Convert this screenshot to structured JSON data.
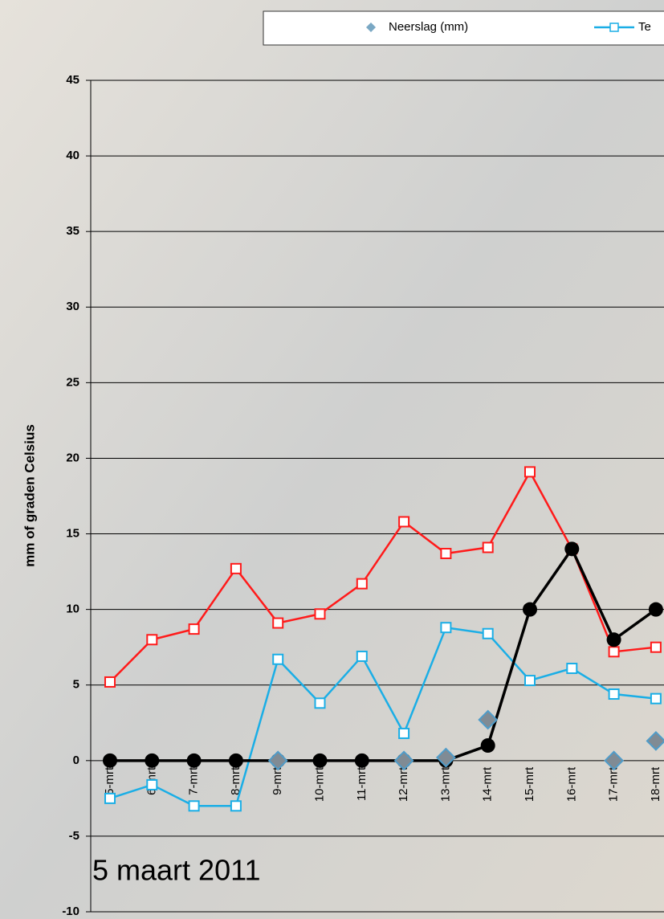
{
  "chart_data": {
    "type": "line",
    "y_label": "mm of graden Celsius",
    "annotation": "5 maart 2011",
    "categories": [
      "5-mrt",
      "6-mrt",
      "7-mrt",
      "8-mrt",
      "9-mrt",
      "10-mrt",
      "11-mrt",
      "12-mrt",
      "13-mrt",
      "14-mrt",
      "15-mrt",
      "16-mrt",
      "17-mrt",
      "18-mrt"
    ],
    "series": [
      {
        "color": "#ff1a1a",
        "marker": "square",
        "line": true,
        "values": [
          5.2,
          8,
          8.7,
          12.7,
          9.1,
          9.7,
          11.7,
          15.8,
          13.7,
          14.1,
          19.1,
          14,
          7.2,
          7.5
        ]
      },
      {
        "name": "Te",
        "color": "#1aaee6",
        "marker": "square",
        "line": true,
        "values": [
          -2.5,
          -1.6,
          -3.0,
          -3.0,
          6.7,
          3.8,
          6.9,
          1.8,
          8.8,
          8.4,
          5.3,
          6.1,
          4.4,
          4.1
        ]
      },
      {
        "color": "#000000",
        "marker": "circle",
        "line": true,
        "values": [
          0,
          0,
          0,
          0,
          0,
          0,
          0,
          0,
          0,
          1,
          10,
          14,
          8,
          10
        ]
      },
      {
        "name": "Neerslag (mm)",
        "color": "#808b94",
        "marker": "diamond",
        "line": false,
        "values": [
          null,
          null,
          null,
          null,
          0,
          null,
          null,
          0,
          0.2,
          2.7,
          null,
          null,
          0,
          1.3
        ]
      }
    ],
    "ylim": [
      -10,
      45
    ],
    "yticks": [
      -10,
      -5,
      0,
      5,
      10,
      15,
      20,
      25,
      30,
      35,
      40,
      45
    ],
    "grid": true
  }
}
